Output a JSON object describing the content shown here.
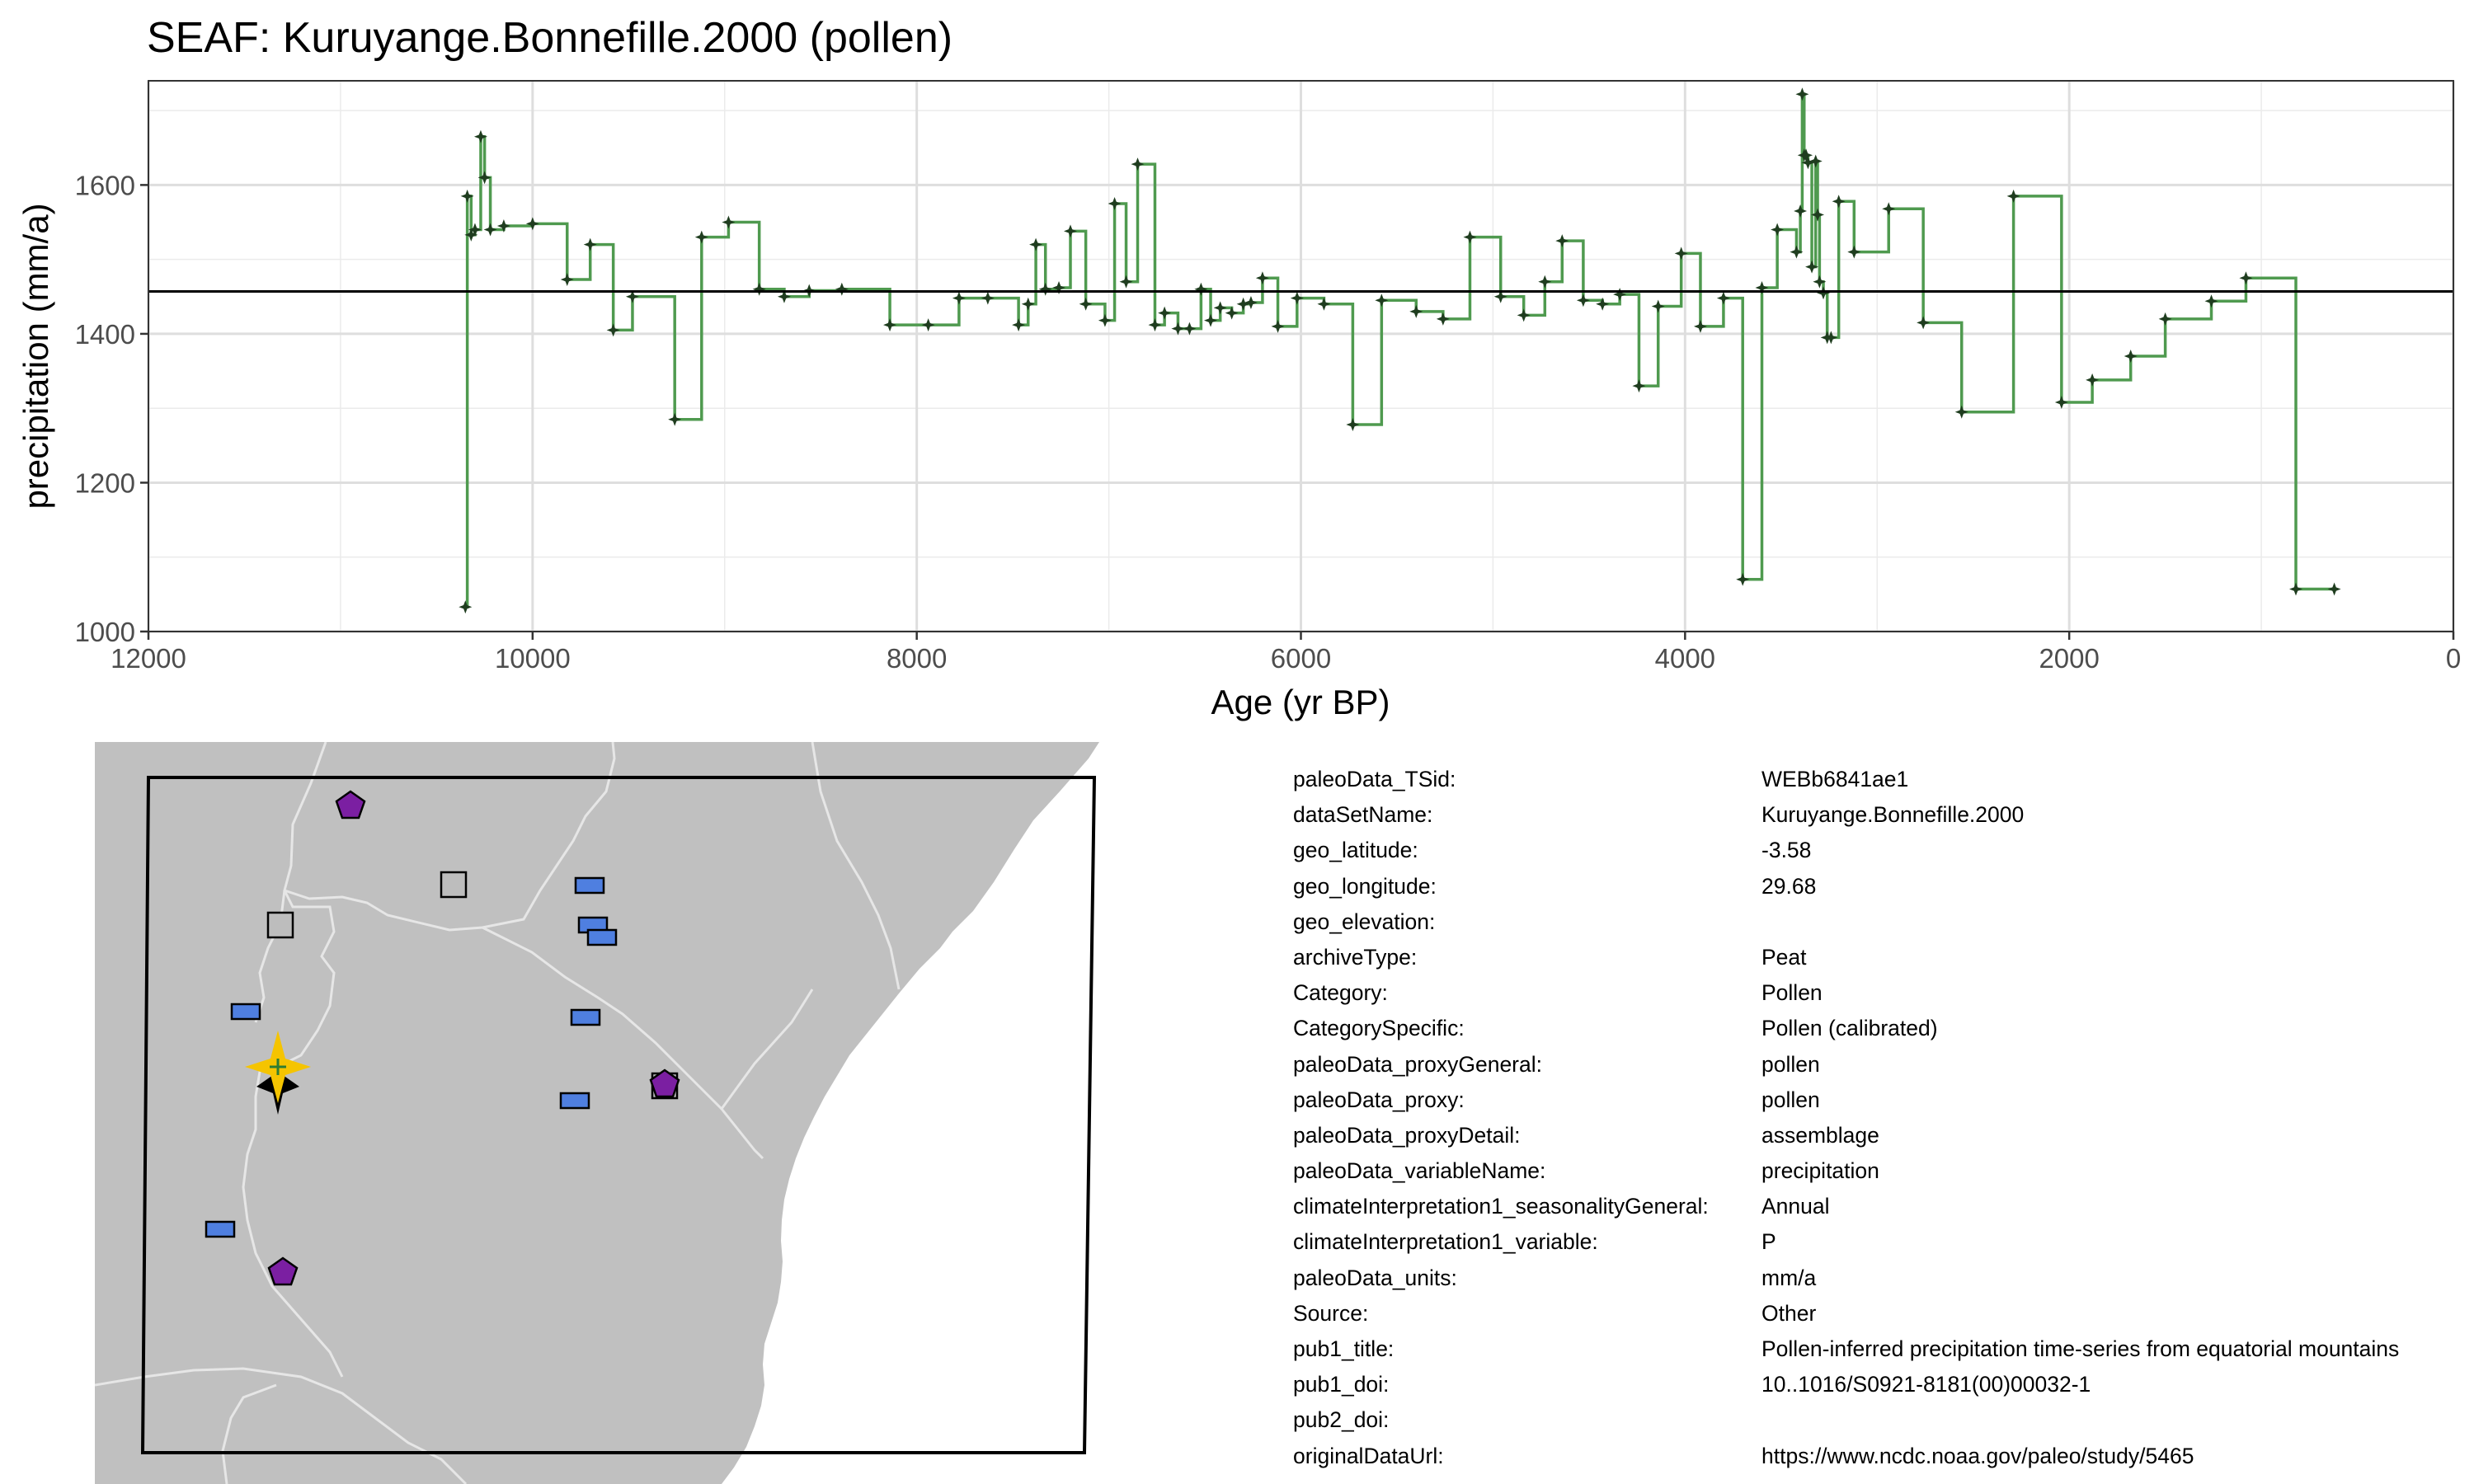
{
  "title": "SEAF: Kuruyange.Bonnefille.2000 (pollen)",
  "chart_data": {
    "type": "line",
    "step": true,
    "title": "SEAF: Kuruyange.Bonnefille.2000 (pollen)",
    "xlabel": "Age (yr BP)",
    "ylabel": "precipitation (mm/a)",
    "x_reversed": true,
    "xlim": [
      12000,
      0
    ],
    "ylim": [
      1000,
      1740
    ],
    "xticks": [
      12000,
      10000,
      8000,
      6000,
      4000,
      2000,
      0
    ],
    "yticks": [
      1000,
      1200,
      1400,
      1600
    ],
    "grid": true,
    "reference_line": 1457,
    "series_color": "#4f9a4f",
    "point_color": "#1f3d1f",
    "series": [
      {
        "x": [
          10350,
          10340,
          10320,
          10300,
          10270,
          10250,
          10220,
          10150,
          10000,
          9820,
          9700,
          9580,
          9480,
          9260,
          9120,
          8980,
          8820,
          8690,
          8560,
          8390,
          8140,
          7940,
          7780,
          7630,
          7470,
          7420,
          7380,
          7330,
          7260,
          7200,
          7120,
          7020,
          6970,
          6910,
          6850,
          6760,
          6710,
          6640,
          6580,
          6520,
          6470,
          6420,
          6360,
          6300,
          6260,
          6200,
          6120,
          6020,
          5880,
          5730,
          5580,
          5400,
          5260,
          5120,
          4960,
          4840,
          4730,
          4640,
          4530,
          4430,
          4340,
          4240,
          4140,
          4020,
          3920,
          3800,
          3700,
          3600,
          3520,
          3420,
          3400,
          3390,
          3380,
          3370,
          3360,
          3340,
          3320,
          3310,
          3300,
          3280,
          3260,
          3240,
          3200,
          3120,
          2940,
          2760,
          2560,
          2290,
          2040,
          1880,
          1680,
          1500,
          1260,
          1080,
          820,
          620
        ],
        "y": [
          1033,
          1585,
          1533,
          1540,
          1665,
          1610,
          1540,
          1545,
          1548,
          1473,
          1520,
          1405,
          1450,
          1285,
          1530,
          1550,
          1460,
          1450,
          1458,
          1460,
          1412,
          1412,
          1448,
          1448,
          1412,
          1440,
          1520,
          1460,
          1462,
          1538,
          1440,
          1418,
          1575,
          1470,
          1628,
          1412,
          1428,
          1407,
          1407,
          1460,
          1418,
          1435,
          1428,
          1440,
          1442,
          1475,
          1410,
          1448,
          1440,
          1278,
          1445,
          1430,
          1420,
          1530,
          1450,
          1425,
          1470,
          1525,
          1445,
          1440,
          1453,
          1330,
          1437,
          1508,
          1410,
          1448,
          1070,
          1462,
          1540,
          1510,
          1565,
          1722,
          1640,
          1640,
          1630,
          1490,
          1632,
          1560,
          1470,
          1455,
          1395,
          1395,
          1578,
          1510,
          1568,
          1415,
          1295,
          1585,
          1308,
          1338,
          1370,
          1420,
          1444,
          1475,
          1057,
          1057
        ]
      }
    ]
  },
  "metadata": [
    {
      "key": "paleoData_TSid:",
      "value": "WEBb6841ae1"
    },
    {
      "key": "dataSetName:",
      "value": "Kuruyange.Bonnefille.2000"
    },
    {
      "key": "geo_latitude:",
      "value": "-3.58"
    },
    {
      "key": "geo_longitude:",
      "value": "29.68"
    },
    {
      "key": "geo_elevation:",
      "value": ""
    },
    {
      "key": "archiveType:",
      "value": "Peat"
    },
    {
      "key": "Category:",
      "value": "Pollen"
    },
    {
      "key": "CategorySpecific:",
      "value": "Pollen (calibrated)"
    },
    {
      "key": "paleoData_proxyGeneral:",
      "value": "pollen"
    },
    {
      "key": "paleoData_proxy:",
      "value": "pollen"
    },
    {
      "key": "paleoData_proxyDetail:",
      "value": "assemblage"
    },
    {
      "key": "paleoData_variableName:",
      "value": "precipitation"
    },
    {
      "key": "climateInterpretation1_seasonalityGeneral:",
      "value": "Annual"
    },
    {
      "key": "climateInterpretation1_variable:",
      "value": "P"
    },
    {
      "key": "paleoData_units:",
      "value": "mm/a"
    },
    {
      "key": "Source:",
      "value": "Other"
    },
    {
      "key": "pub1_title:",
      "value": "Pollen-inferred precipitation time-series from equatorial mountains"
    },
    {
      "key": "pub1_doi:",
      "value": "10..1016/S0921-8181(00)00032-1"
    },
    {
      "key": "pub2_doi:",
      "value": ""
    },
    {
      "key": "originalDataUrl:",
      "value": "https://www.ncdc.noaa.gov/paleo/study/5465"
    }
  ],
  "map": {
    "land_color": "#c0c0c0",
    "sea_color": "#ffffff",
    "border_color": "#e6e6e6",
    "site_marker": "yellow-star",
    "other_sites": [
      {
        "type": "purple-pentagon",
        "color": "#7b1fa2"
      },
      {
        "type": "blue-rectangle",
        "color": "#4f7fe0"
      },
      {
        "type": "gray-square",
        "color": "#bdbdbd"
      }
    ]
  }
}
